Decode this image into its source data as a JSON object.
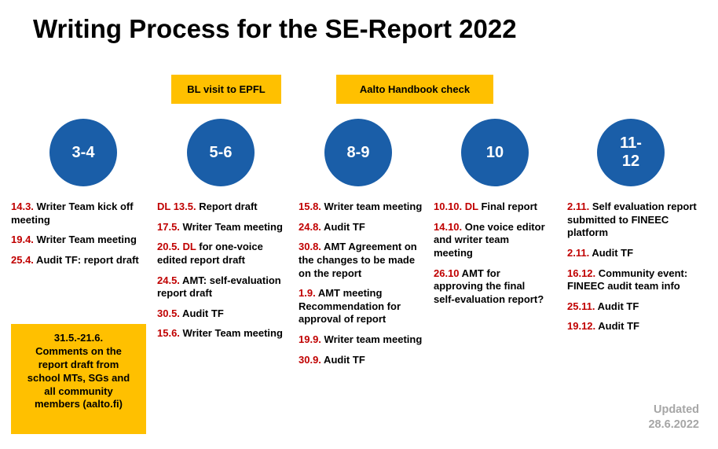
{
  "title": "Writing Process for the SE-Report 2022",
  "colors": {
    "circle_blue": "#1A5EA8",
    "banner_yellow": "#FFC000",
    "date_red": "#C00000",
    "updated_gray": "#A6A6A6"
  },
  "banners": [
    {
      "label": "BL visit to EPFL"
    },
    {
      "label": "Aalto Handbook check"
    }
  ],
  "columns": [
    {
      "circle": "3-4",
      "items": [
        {
          "date": "14.3.",
          "text": "Writer Team kick off meeting"
        },
        {
          "date": "19.4.",
          "text": "Writer Team meeting"
        },
        {
          "date": "25.4.",
          "text": "Audit TF: report draft"
        }
      ]
    },
    {
      "circle": "5-6",
      "items": [
        {
          "date": "DL 13.5.",
          "text": "Report draft"
        },
        {
          "date": "17.5.",
          "text": "Writer Team meeting"
        },
        {
          "date": "20.5. DL",
          "text": "for one-voice edited report draft"
        },
        {
          "date": "24.5.",
          "text": "AMT: self-evaluation report draft"
        },
        {
          "date": "30.5.",
          "text": "Audit TF"
        },
        {
          "date": "15.6.",
          "text": "Writer Team meeting"
        }
      ]
    },
    {
      "circle": "8-9",
      "items": [
        {
          "date": "15.8.",
          "text": "Writer team meeting"
        },
        {
          "date": "24.8.",
          "text": "Audit TF"
        },
        {
          "date": "30.8.",
          "text": "AMT Agreement on the changes to be made on the report"
        },
        {
          "date": "1.9.",
          "text": "AMT meeting Recommendation for approval of report"
        },
        {
          "date": "19.9.",
          "text": "Writer team meeting"
        },
        {
          "date": "30.9.",
          "text": "Audit TF"
        }
      ]
    },
    {
      "circle": "10",
      "items": [
        {
          "date": "10.10. DL",
          "text": "Final report"
        },
        {
          "date": "14.10.",
          "text": "One voice editor and writer team meeting"
        },
        {
          "date": "26.10",
          "text": "AMT for approving the final self-evaluation report?"
        }
      ]
    },
    {
      "circle": "11-\n12",
      "items": [
        {
          "date": "2.11.",
          "text": "Self evaluation report submitted to FINEEC platform"
        },
        {
          "date": "2.11.",
          "text": "Audit TF"
        },
        {
          "date": "16.12.",
          "text": "Community event: FINEEC audit team info"
        },
        {
          "date": "25.11.",
          "text": "Audit TF"
        },
        {
          "date": "19.12.",
          "text": "Audit TF"
        }
      ]
    }
  ],
  "note": {
    "date": "31.5.-21.6.",
    "text": "Comments on the report draft from school MTs, SGs and all community members (aalto.fi)"
  },
  "updated": {
    "line1": "Updated",
    "line2": "28.6.2022"
  }
}
